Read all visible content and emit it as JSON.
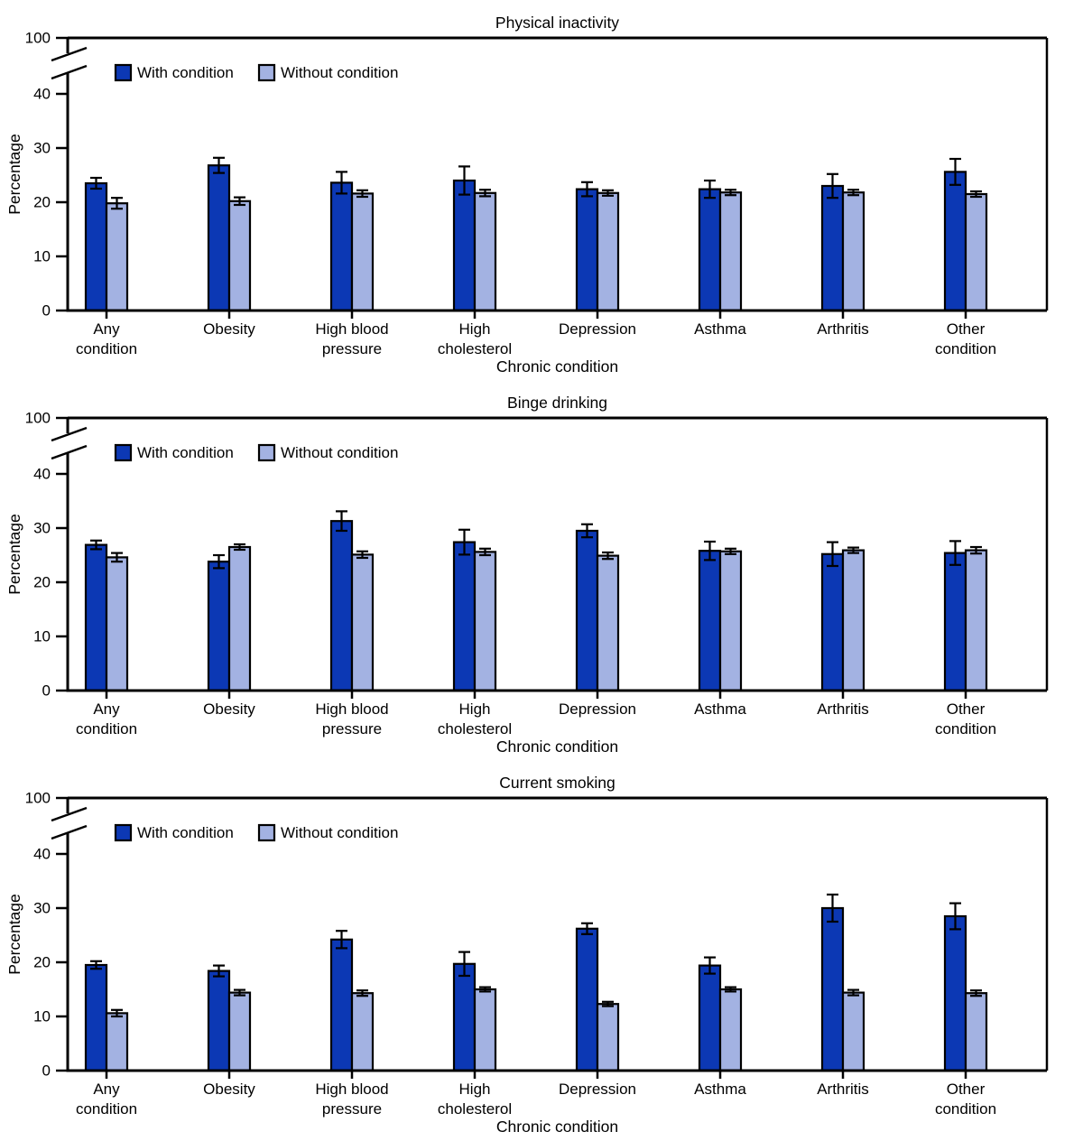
{
  "figure": {
    "panel_count": 3,
    "background": "#ffffff"
  },
  "colors": {
    "with_condition": "#0c38b4",
    "without_condition": "#a3b2e2",
    "bar_outline": "#000000",
    "axis": "#000000",
    "error_bar": "#000000",
    "text": "#000000"
  },
  "legend": {
    "items": [
      {
        "label": "With condition",
        "color_key": "with_condition"
      },
      {
        "label": "Without condition",
        "color_key": "without_condition"
      }
    ],
    "position": "top-left-inside-plot"
  },
  "axes": {
    "y_label": "Percentage",
    "x_label": "Chronic condition",
    "y_ticks": [
      0,
      10,
      20,
      30,
      40
    ],
    "y_break_top_tick": 100,
    "y_axis_break": true,
    "grid": false
  },
  "chart_data": [
    {
      "type": "bar",
      "title": "Physical inactivity",
      "xlabel": "Chronic condition",
      "ylabel": "Percentage",
      "ylim": [
        0,
        100
      ],
      "axis_break_between": [
        43,
        97
      ],
      "categories": [
        "Any condition",
        "Obesity",
        "High blood pressure",
        "High cholesterol",
        "Depression",
        "Asthma",
        "Arthritis",
        "Other condition"
      ],
      "category_label_lines": [
        [
          "Any",
          "condition"
        ],
        [
          "Obesity"
        ],
        [
          "High blood",
          "pressure"
        ],
        [
          "High",
          "cholesterol"
        ],
        [
          "Depression"
        ],
        [
          "Asthma"
        ],
        [
          "Arthritis"
        ],
        [
          "Other",
          "condition"
        ]
      ],
      "series": [
        {
          "name": "With condition",
          "values": [
            23.5,
            26.8,
            23.6,
            24.0,
            22.4,
            22.4,
            23.0,
            25.6
          ],
          "error": [
            1.0,
            1.4,
            2.0,
            2.6,
            1.3,
            1.6,
            2.2,
            2.4
          ]
        },
        {
          "name": "Without condition",
          "values": [
            19.8,
            20.2,
            21.6,
            21.7,
            21.7,
            21.8,
            21.8,
            21.5
          ],
          "error": [
            1.0,
            0.7,
            0.6,
            0.6,
            0.5,
            0.5,
            0.5,
            0.5
          ]
        }
      ]
    },
    {
      "type": "bar",
      "title": "Binge drinking",
      "xlabel": "Chronic condition",
      "ylabel": "Percentage",
      "ylim": [
        0,
        100
      ],
      "axis_break_between": [
        43,
        97
      ],
      "categories": [
        "Any condition",
        "Obesity",
        "High blood pressure",
        "High cholesterol",
        "Depression",
        "Asthma",
        "Arthritis",
        "Other condition"
      ],
      "category_label_lines": [
        [
          "Any",
          "condition"
        ],
        [
          "Obesity"
        ],
        [
          "High blood",
          "pressure"
        ],
        [
          "High",
          "cholesterol"
        ],
        [
          "Depression"
        ],
        [
          "Asthma"
        ],
        [
          "Arthritis"
        ],
        [
          "Other",
          "condition"
        ]
      ],
      "series": [
        {
          "name": "With condition",
          "values": [
            26.9,
            23.8,
            31.3,
            27.4,
            29.5,
            25.8,
            25.2,
            25.4
          ],
          "error": [
            0.8,
            1.2,
            1.8,
            2.3,
            1.2,
            1.7,
            2.2,
            2.2
          ]
        },
        {
          "name": "Without condition",
          "values": [
            24.6,
            26.5,
            25.1,
            25.6,
            24.9,
            25.7,
            25.9,
            25.9
          ],
          "error": [
            0.8,
            0.5,
            0.6,
            0.6,
            0.6,
            0.5,
            0.5,
            0.6
          ]
        }
      ]
    },
    {
      "type": "bar",
      "title": "Current smoking",
      "xlabel": "Chronic condition",
      "ylabel": "Percentage",
      "ylim": [
        0,
        100
      ],
      "axis_break_between": [
        43,
        97
      ],
      "categories": [
        "Any condition",
        "Obesity",
        "High blood pressure",
        "High cholesterol",
        "Depression",
        "Asthma",
        "Arthritis",
        "Other condition"
      ],
      "category_label_lines": [
        [
          "Any",
          "condition"
        ],
        [
          "Obesity"
        ],
        [
          "High blood",
          "pressure"
        ],
        [
          "High",
          "cholesterol"
        ],
        [
          "Depression"
        ],
        [
          "Asthma"
        ],
        [
          "Arthritis"
        ],
        [
          "Other",
          "condition"
        ]
      ],
      "series": [
        {
          "name": "With condition",
          "values": [
            19.5,
            18.4,
            24.2,
            19.7,
            26.2,
            19.4,
            30.0,
            28.5
          ],
          "error": [
            0.7,
            1.0,
            1.6,
            2.2,
            1.0,
            1.5,
            2.5,
            2.4
          ]
        },
        {
          "name": "Without condition",
          "values": [
            10.6,
            14.4,
            14.3,
            15.0,
            12.3,
            15.0,
            14.4,
            14.3
          ],
          "error": [
            0.6,
            0.5,
            0.5,
            0.4,
            0.4,
            0.4,
            0.5,
            0.5
          ]
        }
      ]
    }
  ]
}
